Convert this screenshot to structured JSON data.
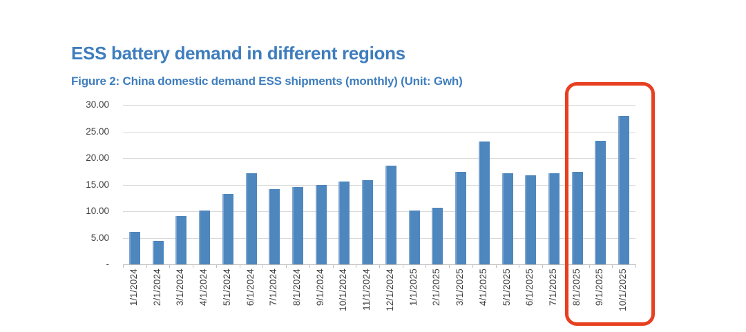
{
  "header": {
    "title": "ESS battery demand in different regions",
    "caption": "Figure 2: China domestic demand ESS shipments (monthly) (Unit: Gwh)"
  },
  "colors": {
    "title_blue": "#3E7DBD",
    "bar_blue": "#4E86BE",
    "bar_edge_light": "#7EA6D0",
    "highlight_red": "#E73F20",
    "gridline_gray": "#D9D9D9",
    "axis_line_gray": "#BFBFBF",
    "axis_text_gray": "#404040"
  },
  "chart_data": {
    "type": "bar",
    "title": "Figure 2: China domestic demand ESS shipments (monthly) (Unit: Gwh)",
    "unit": "Gwh",
    "xlabel": "",
    "ylabel": "",
    "ylim": [
      0,
      30
    ],
    "grid": true,
    "legend": "none",
    "categories": [
      "1/1/2024",
      "2/1/2024",
      "3/1/2024",
      "4/1/2024",
      "5/1/2024",
      "6/1/2024",
      "7/1/2024",
      "8/1/2024",
      "9/1/2024",
      "10/1/2024",
      "11/1/2024",
      "12/1/2024",
      "1/1/2025",
      "2/1/2025",
      "3/1/2025",
      "4/1/2025",
      "5/1/2025",
      "6/1/2025",
      "7/1/2025",
      "8/1/2025",
      "9/1/2025",
      "10/1/2025"
    ],
    "values": [
      6.1,
      4.4,
      9.1,
      10.1,
      13.3,
      17.1,
      14.1,
      14.5,
      15.0,
      15.6,
      15.9,
      18.6,
      10.1,
      10.7,
      17.4,
      23.1,
      17.2,
      16.8,
      17.2,
      17.4,
      23.2,
      27.9
    ],
    "y_ticks": [
      {
        "label": "30.00",
        "value": 30
      },
      {
        "label": "25.00",
        "value": 25
      },
      {
        "label": "20.00",
        "value": 20
      },
      {
        "label": "15.00",
        "value": 15
      },
      {
        "label": "10.00",
        "value": 10
      },
      {
        "label": "5.00",
        "value": 5
      },
      {
        "label": "-",
        "value": 0
      }
    ],
    "highlight": {
      "categories": [
        "8/1/2025",
        "9/1/2025",
        "10/1/2025"
      ],
      "style": "red-rounded-box"
    }
  }
}
